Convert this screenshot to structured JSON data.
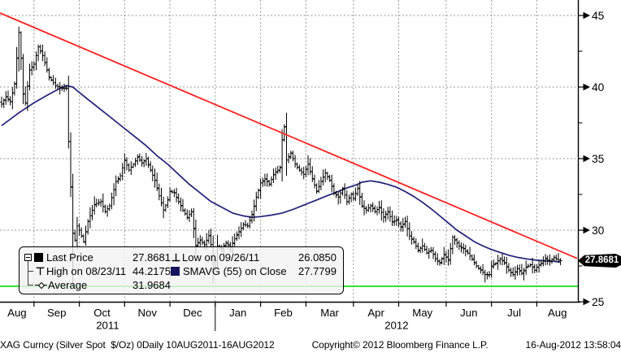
{
  "colors": {
    "background": "#ffffff",
    "bar": "#000000",
    "sma_line": "#20207a",
    "trend_line": "#ff2222",
    "support_line": "#00dd00",
    "grid": "#979797",
    "axis": "#000000",
    "legend_bg": "rgba(243,243,243,0.80)",
    "tag_bg": "#000000",
    "tag_text": "#ffffff"
  },
  "legend": {
    "last_price": {
      "label": "Last Price",
      "value": "27.8681"
    },
    "high": {
      "label": "High on 08/23/11",
      "value": "44.2175"
    },
    "average": {
      "label": "Average",
      "value": "31.9684"
    },
    "low": {
      "label": "Low on 09/26/11",
      "value": "26.0850"
    },
    "smavg": {
      "label": "SMAVG (55) on Close",
      "value": "27.7799"
    },
    "icons": {
      "high_glyph": "⊤",
      "low_glyph": "⊥"
    }
  },
  "price_tag": {
    "value": "27.8681"
  },
  "y_axis": {
    "major_ticks": [
      45,
      40,
      35,
      30,
      25
    ],
    "minor_ticks": [
      42.5,
      37.5,
      32.5,
      27.5
    ]
  },
  "x_axis": {
    "months": [
      "Aug",
      "Sep",
      "Oct",
      "Nov",
      "Dec",
      "Jan",
      "Feb",
      "Mar",
      "Apr",
      "May",
      "Jun",
      "Jul",
      "Aug"
    ],
    "years": [
      {
        "label": "2011",
        "month_span": [
          0,
          5
        ]
      },
      {
        "label": "2012",
        "month_span": [
          5,
          13
        ]
      }
    ]
  },
  "footer": {
    "left": "XAG Curncy (Silver Spot  $/Oz) 0Daily 10AUG2011-16AUG2012",
    "center": "Copyright© 2012 Bloomberg Finance L.P.",
    "right": "16-Aug-2012 13:58:04"
  },
  "chart_data": {
    "type": "ohlc",
    "title": "XAG Curncy (Silver Spot $/Oz)",
    "frequency": "Daily",
    "date_range": "10AUG2011-16AUG2012",
    "ylim": [
      24.8,
      45.4
    ],
    "grid": true,
    "legend_position": "bottom-left-overlay",
    "trading_days_per_month": [
      15,
      21,
      21,
      21,
      21,
      21,
      21,
      22,
      21,
      22,
      21,
      21,
      12
    ],
    "stats": {
      "last": 27.8681,
      "high": 44.2175,
      "high_date": "08/23/11",
      "low": 26.085,
      "low_date": "09/26/11",
      "average": 31.9684,
      "smavg55_close": 27.7799
    },
    "overlays": {
      "trendline": {
        "type": "linear-resistance",
        "start_price": 45.17,
        "end_price": 28.03
      },
      "support": {
        "price": 26.085
      }
    },
    "forced_extremes": {
      "8": {
        "high": 44.2175
      },
      "33": {
        "low": 26.085
      },
      "98": {
        "low": 26.3
      },
      "131": {
        "high": 37.4
      },
      "224": {
        "low": 26.35
      },
      "259": {
        "low": 27.55,
        "high": 28.05
      }
    },
    "close_anchors": [
      [
        0,
        38.8
      ],
      [
        2,
        39.3
      ],
      [
        4,
        39.0
      ],
      [
        6,
        40.2
      ],
      [
        8,
        43.8
      ],
      [
        9,
        42.0
      ],
      [
        10,
        39.5
      ],
      [
        11,
        38.9
      ],
      [
        13,
        41.2
      ],
      [
        15,
        41.6
      ],
      [
        17,
        42.8
      ],
      [
        19,
        42.2
      ],
      [
        22,
        40.7
      ],
      [
        25,
        40.1
      ],
      [
        28,
        39.9
      ],
      [
        30,
        39.9
      ],
      [
        31,
        36.2
      ],
      [
        32,
        33.0
      ],
      [
        33,
        29.8
      ],
      [
        34,
        29.3
      ],
      [
        35,
        30.3
      ],
      [
        36,
        30.0
      ],
      [
        38,
        29.2
      ],
      [
        40,
        30.6
      ],
      [
        43,
        31.8
      ],
      [
        46,
        32.0
      ],
      [
        48,
        31.3
      ],
      [
        50,
        31.7
      ],
      [
        53,
        33.4
      ],
      [
        55,
        33.8
      ],
      [
        57,
        34.9
      ],
      [
        59,
        34.2
      ],
      [
        61,
        34.6
      ],
      [
        63,
        35.1
      ],
      [
        65,
        34.7
      ],
      [
        67,
        35.0
      ],
      [
        69,
        34.2
      ],
      [
        71,
        33.5
      ],
      [
        73,
        32.4
      ],
      [
        75,
        31.4
      ],
      [
        77,
        32.1
      ],
      [
        78,
        32.7
      ],
      [
        80,
        32.6
      ],
      [
        82,
        32.0
      ],
      [
        84,
        31.4
      ],
      [
        86,
        30.9
      ],
      [
        88,
        31.3
      ],
      [
        90,
        28.9
      ],
      [
        92,
        29.3
      ],
      [
        94,
        29.0
      ],
      [
        96,
        29.6
      ],
      [
        97,
        29.0
      ],
      [
        98,
        27.2
      ],
      [
        99,
        27.9
      ],
      [
        100,
        28.9
      ],
      [
        102,
        28.7
      ],
      [
        104,
        29.1
      ],
      [
        106,
        28.8
      ],
      [
        108,
        29.4
      ],
      [
        110,
        29.9
      ],
      [
        112,
        30.4
      ],
      [
        114,
        30.3
      ],
      [
        116,
        31.1
      ],
      [
        118,
        32.3
      ],
      [
        120,
        33.3
      ],
      [
        122,
        33.6
      ],
      [
        124,
        33.2
      ],
      [
        126,
        33.9
      ],
      [
        128,
        34.2
      ],
      [
        129,
        34.4
      ],
      [
        130,
        36.3
      ],
      [
        131,
        37.2
      ],
      [
        132,
        34.9
      ],
      [
        134,
        35.4
      ],
      [
        136,
        34.6
      ],
      [
        138,
        34.2
      ],
      [
        140,
        33.9
      ],
      [
        142,
        34.6
      ],
      [
        144,
        33.6
      ],
      [
        146,
        32.7
      ],
      [
        148,
        33.4
      ],
      [
        150,
        34.0
      ],
      [
        152,
        33.5
      ],
      [
        154,
        32.6
      ],
      [
        156,
        32.3
      ],
      [
        158,
        32.9
      ],
      [
        160,
        32.0
      ],
      [
        162,
        32.5
      ],
      [
        163,
        32.2
      ],
      [
        165,
        32.9
      ],
      [
        167,
        31.7
      ],
      [
        169,
        31.4
      ],
      [
        171,
        31.7
      ],
      [
        173,
        31.3
      ],
      [
        175,
        31.6
      ],
      [
        177,
        30.9
      ],
      [
        179,
        31.3
      ],
      [
        181,
        30.6
      ],
      [
        183,
        30.7
      ],
      [
        185,
        30.2
      ],
      [
        187,
        30.6
      ],
      [
        189,
        29.6
      ],
      [
        191,
        29.2
      ],
      [
        193,
        28.6
      ],
      [
        195,
        28.9
      ],
      [
        197,
        28.4
      ],
      [
        199,
        28.6
      ],
      [
        201,
        28.0
      ],
      [
        203,
        27.7
      ],
      [
        205,
        28.3
      ],
      [
        207,
        27.9
      ],
      [
        209,
        29.5
      ],
      [
        210,
        29.3
      ],
      [
        212,
        28.9
      ],
      [
        214,
        28.7
      ],
      [
        216,
        28.4
      ],
      [
        218,
        28.0
      ],
      [
        220,
        27.5
      ],
      [
        222,
        27.2
      ],
      [
        224,
        26.9
      ],
      [
        226,
        26.9
      ],
      [
        227,
        27.5
      ],
      [
        229,
        27.7
      ],
      [
        231,
        28.0
      ],
      [
        233,
        27.7
      ],
      [
        235,
        27.2
      ],
      [
        237,
        26.9
      ],
      [
        239,
        27.3
      ],
      [
        241,
        27.0
      ],
      [
        243,
        27.4
      ],
      [
        245,
        27.6
      ],
      [
        247,
        27.2
      ],
      [
        248,
        27.4
      ],
      [
        250,
        27.7
      ],
      [
        252,
        28.0
      ],
      [
        254,
        27.8
      ],
      [
        256,
        28.1
      ],
      [
        258,
        27.9
      ],
      [
        259,
        27.8681
      ]
    ],
    "sma55_anchors": [
      [
        0,
        37.3
      ],
      [
        8,
        38.2
      ],
      [
        15,
        38.9
      ],
      [
        22,
        39.5
      ],
      [
        27,
        39.9
      ],
      [
        30,
        40.1
      ],
      [
        33,
        40.0
      ],
      [
        37,
        39.5
      ],
      [
        42,
        38.9
      ],
      [
        47,
        38.3
      ],
      [
        52,
        37.7
      ],
      [
        57,
        37.1
      ],
      [
        62,
        36.5
      ],
      [
        67,
        35.9
      ],
      [
        72,
        35.2
      ],
      [
        77,
        34.6
      ],
      [
        82,
        33.9
      ],
      [
        87,
        33.2
      ],
      [
        92,
        32.6
      ],
      [
        97,
        32.0
      ],
      [
        102,
        31.6
      ],
      [
        107,
        31.2
      ],
      [
        112,
        31.0
      ],
      [
        116,
        30.9
      ],
      [
        120,
        30.95
      ],
      [
        125,
        31.05
      ],
      [
        130,
        31.2
      ],
      [
        135,
        31.45
      ],
      [
        140,
        31.75
      ],
      [
        145,
        32.05
      ],
      [
        150,
        32.35
      ],
      [
        155,
        32.65
      ],
      [
        160,
        32.95
      ],
      [
        164,
        33.15
      ],
      [
        167,
        33.35
      ],
      [
        171,
        33.45
      ],
      [
        175,
        33.35
      ],
      [
        179,
        33.2
      ],
      [
        183,
        33.0
      ],
      [
        187,
        32.7
      ],
      [
        191,
        32.35
      ],
      [
        195,
        31.95
      ],
      [
        199,
        31.5
      ],
      [
        203,
        31.0
      ],
      [
        207,
        30.5
      ],
      [
        211,
        30.0
      ],
      [
        215,
        29.6
      ],
      [
        219,
        29.2
      ],
      [
        223,
        28.9
      ],
      [
        227,
        28.65
      ],
      [
        231,
        28.45
      ],
      [
        235,
        28.25
      ],
      [
        239,
        28.1
      ],
      [
        243,
        28.0
      ],
      [
        247,
        27.92
      ],
      [
        251,
        27.87
      ],
      [
        255,
        27.83
      ],
      [
        259,
        27.78
      ]
    ]
  }
}
